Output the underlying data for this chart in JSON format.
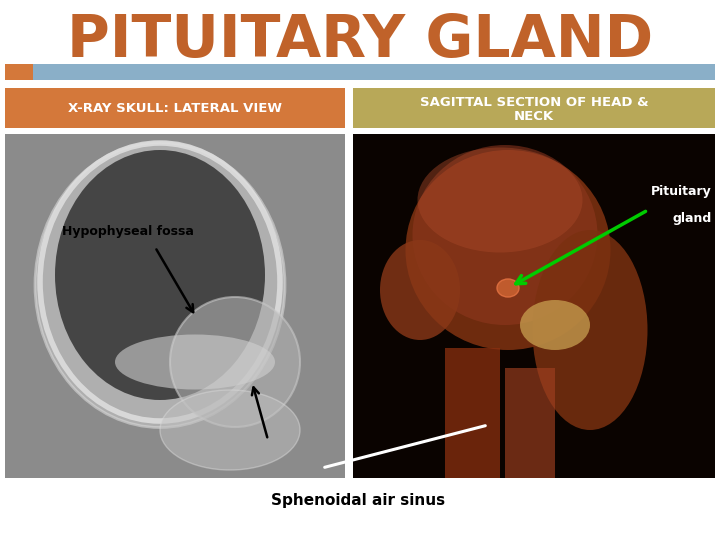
{
  "title": "PITUITARY GLAND",
  "title_color": "#C0622A",
  "title_fontsize": 42,
  "bg_color": "#FFFFFF",
  "header_bar_color": "#8AAFC8",
  "header_bar_left_color": "#D4783A",
  "left_label": "X-RAY SKULL: LATERAL VIEW",
  "right_label_line1": "SAGITTAL SECTION OF HEAD &",
  "right_label_line2": "NECK",
  "left_label_bg": "#D4783A",
  "right_label_bg": "#B8A858",
  "label_text_color": "#FFFFFF",
  "annotation_left": "Hypophyseal fossa",
  "annotation_right_line1": "Pituitary",
  "annotation_right_line2": "gland",
  "annotation_bottom": "Sphenoidal air sinus",
  "arrow_color_green": "#00CC00",
  "arrow_color_white": "#FFFFFF",
  "arrow_color_black": "#000000"
}
